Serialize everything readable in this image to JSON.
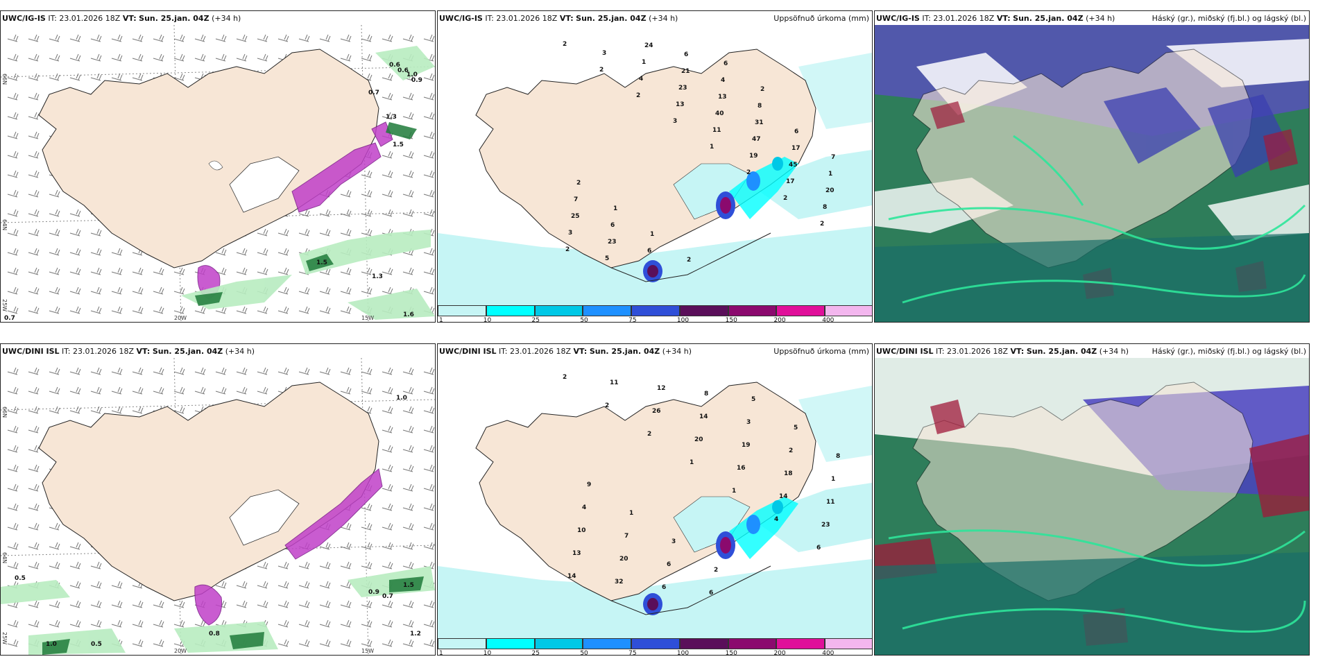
{
  "panels": [
    {
      "model": "UWC/IG-IS",
      "it": "IT: 23.01.2026 18Z",
      "vt_label": "VT:",
      "vt": "Sun. 25.jan. 04Z",
      "lead": "(+34 h)",
      "label": ""
    },
    {
      "model": "UWC/IG-IS",
      "it": "IT: 23.01.2026 18Z",
      "vt_label": "VT:",
      "vt": "Sun. 25.jan. 04Z",
      "lead": "(+34 h)",
      "label": "Uppsöfnuð úrkoma (mm)"
    },
    {
      "model": "UWC/IG-IS",
      "it": "IT: 23.01.2026 18Z",
      "vt_label": "VT:",
      "vt": "Sun. 25.jan. 04Z",
      "lead": "(+34 h)",
      "label": "Háský (gr.), miðský (fj.bl.) og lágský (bl.)"
    },
    {
      "model": "UWC/DINI ISL",
      "it": "IT: 23.01.2026 18Z",
      "vt_label": "VT:",
      "vt": "Sun. 25.jan. 04Z",
      "lead": "(+34 h)",
      "label": ""
    },
    {
      "model": "UWC/DINI ISL",
      "it": "IT: 23.01.2026 18Z",
      "vt_label": "VT:",
      "vt": "Sun. 25.jan. 04Z",
      "lead": "(+34 h)",
      "label": "Uppsöfnuð úrkoma (mm)"
    },
    {
      "model": "UWC/DINI ISL",
      "it": "IT: 23.01.2026 18Z",
      "vt_label": "VT:",
      "vt": "Sun. 25.jan. 04Z",
      "lead": "(+34 h)",
      "label": "Háský (gr.), miðský (fj.bl.) og lágský (bl.)"
    }
  ],
  "axes": {
    "lon_a": "20W",
    "lon_b": "15W",
    "lat_66": "66N",
    "lat_64": "64N",
    "lat_25": "25W"
  },
  "colorbar": {
    "ticks": [
      "1",
      "10",
      "25",
      "50",
      "75",
      "100",
      "150",
      "200",
      "400"
    ],
    "colors": [
      "#c6f5f5",
      "#00ffff",
      "#00c8e6",
      "#1e90ff",
      "#2f4fd8",
      "#5a0f5a",
      "#8b0a6e",
      "#e0109a",
      "#f3b6ee"
    ]
  },
  "wind_gust_labels_top": [
    "0.6",
    "0.6",
    "1.0",
    "0.9",
    "0.7",
    "1.3",
    "1.5",
    "1.5",
    "1.3",
    "1.6",
    "0.7"
  ],
  "wind_gust_labels_bottom": [
    "1.0",
    "0.5",
    "0.9",
    "0.7",
    "1.5",
    "0.8",
    "0.5",
    "1.0",
    "1.2"
  ],
  "precip_labels_top": [
    "2",
    "2",
    "2",
    "3",
    "1",
    "2",
    "2",
    "2",
    "2",
    "3",
    "4",
    "13",
    "11",
    "19",
    "17",
    "8",
    "3",
    "5",
    "1",
    "23",
    "40",
    "47",
    "45",
    "20",
    "25",
    "23",
    "24",
    "21",
    "13",
    "31",
    "17",
    "1",
    "7",
    "6",
    "6",
    "6",
    "4",
    "8",
    "6",
    "7",
    "2",
    "1",
    "1",
    "2",
    "6",
    "2"
  ],
  "precip_labels_bottom": [
    "2",
    "2",
    "2",
    "1",
    "1",
    "4",
    "6",
    "14",
    "11",
    "26",
    "20",
    "16",
    "14",
    "23",
    "13",
    "32",
    "12",
    "14",
    "19",
    "18",
    "11",
    "10",
    "20",
    "6",
    "8",
    "3",
    "2",
    "1",
    "4",
    "7",
    "6",
    "6",
    "5",
    "5",
    "8",
    "9",
    "1",
    "3",
    "2"
  ],
  "colors": {
    "land": "#f7e6d6",
    "outline": "#222222",
    "green_light": "#b8ecc0",
    "green_dark": "#1f7a3a",
    "purple": "#c040c8"
  }
}
